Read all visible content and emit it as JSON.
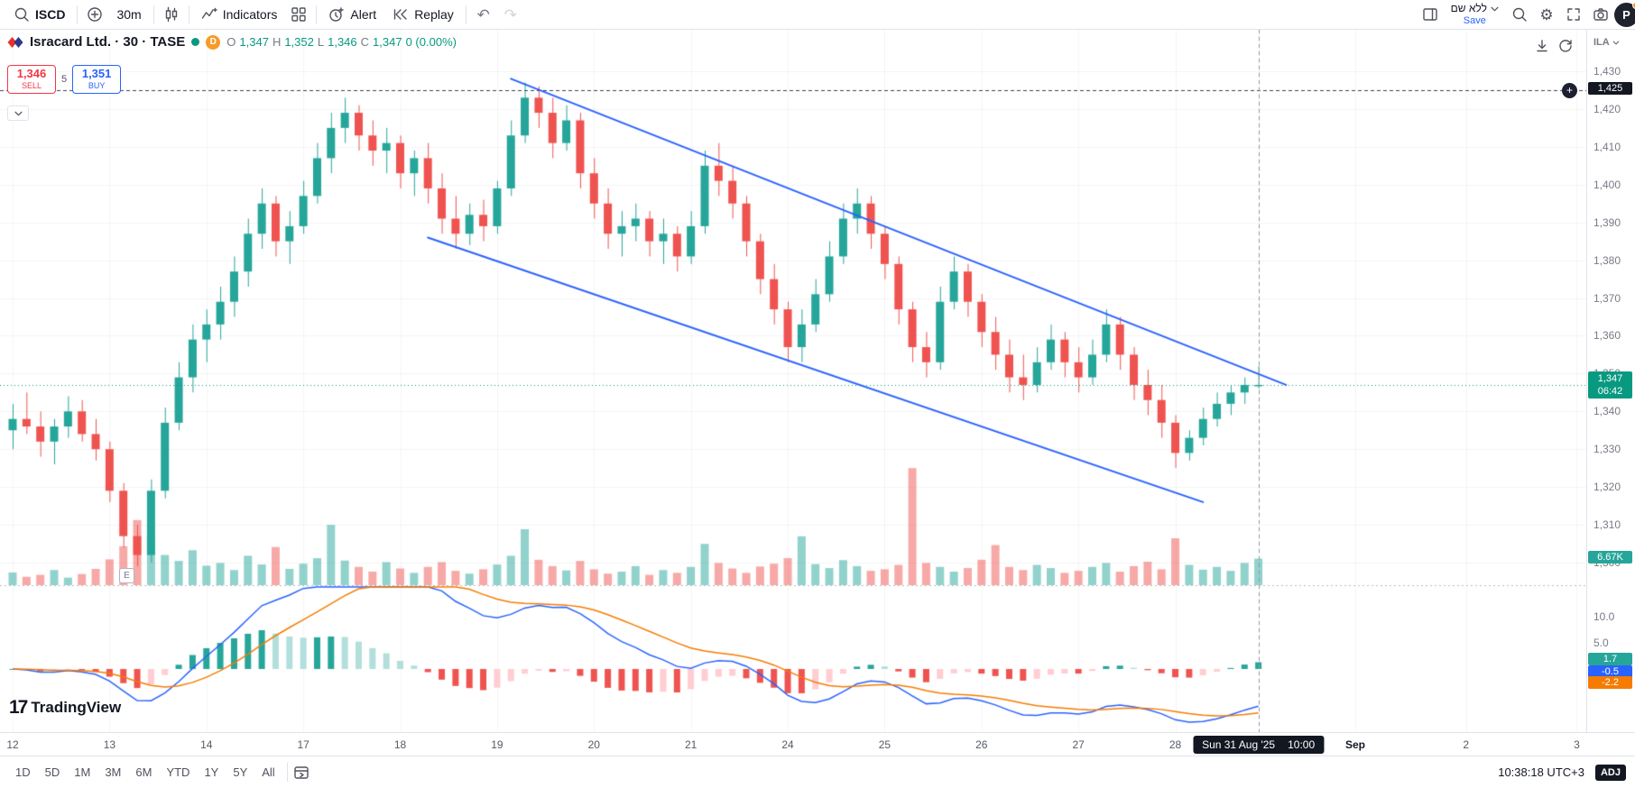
{
  "toolbar": {
    "symbol_search": "ISCD",
    "interval": "30m",
    "indicators_label": "Indicators",
    "alert_label": "Alert",
    "replay_label": "Replay",
    "layout_name": "ללא שם",
    "save_label": "Save",
    "avatar_initial": "P"
  },
  "symbol_bar": {
    "title": "Isracard Ltd. · 30 · TASE",
    "delayed_badge": "D",
    "ohlc": {
      "o_label": "O",
      "o": "1,347",
      "h_label": "H",
      "h": "1,352",
      "l_label": "L",
      "l": "1,346",
      "c_label": "C",
      "c": "1,347",
      "change": "0 (0.00%)"
    }
  },
  "order_panel": {
    "sell_price": "1,346",
    "sell_label": "SELL",
    "spread": "5",
    "buy_price": "1,351",
    "buy_label": "BUY"
  },
  "price_scale": {
    "currency": "ILA",
    "ticks": [
      "1,430",
      "1,420",
      "1,410",
      "1,400",
      "1,390",
      "1,380",
      "1,370",
      "1,360",
      "1,350",
      "1,340",
      "1,330",
      "1,320",
      "1,310",
      "1,300"
    ],
    "alert_price": "1,425",
    "last_price": "1,347",
    "countdown": "06:42",
    "volume_label": "6.67K"
  },
  "macd_scale": {
    "ticks": [
      {
        "label": "10.0",
        "value": 10
      },
      {
        "label": "5.0",
        "value": 5
      }
    ],
    "hist_label": "1.7",
    "macd_label": "-0.5",
    "signal_label": "-2.2"
  },
  "time_scale": {
    "ticks": [
      {
        "label": "12",
        "i": 0
      },
      {
        "label": "13",
        "i": 7
      },
      {
        "label": "14",
        "i": 14
      },
      {
        "label": "17",
        "i": 21
      },
      {
        "label": "18",
        "i": 28
      },
      {
        "label": "19",
        "i": 35
      },
      {
        "label": "20",
        "i": 42
      },
      {
        "label": "21",
        "i": 49
      },
      {
        "label": "24",
        "i": 56
      },
      {
        "label": "25",
        "i": 63
      },
      {
        "label": "26",
        "i": 70
      },
      {
        "label": "27",
        "i": 77
      },
      {
        "label": "28",
        "i": 84
      },
      {
        "label": "Sep",
        "i": 97
      },
      {
        "label": "2",
        "i": 105
      },
      {
        "label": "3",
        "i": 113
      }
    ],
    "crosshair_date": "Sun 31 Aug '25",
    "crosshair_time": "10:00"
  },
  "bottom_toolbar": {
    "ranges": [
      "1D",
      "5D",
      "1M",
      "3M",
      "6M",
      "YTD",
      "1Y",
      "5Y",
      "All"
    ],
    "clock": "10:38:18 UTC+3",
    "adj": "ADJ"
  },
  "watermark": {
    "mark": "17",
    "text": "TradingView"
  },
  "earnings_marker": "E",
  "chart_data": {
    "type": "candlestick",
    "symbol": "ISCD",
    "interval": "30m",
    "price_range": [
      1300,
      1430
    ],
    "candles": [
      [
        1335,
        1342,
        1330,
        1338
      ],
      [
        1338,
        1345,
        1334,
        1336
      ],
      [
        1336,
        1340,
        1328,
        1332
      ],
      [
        1332,
        1338,
        1326,
        1336
      ],
      [
        1336,
        1344,
        1333,
        1340
      ],
      [
        1340,
        1343,
        1332,
        1334
      ],
      [
        1334,
        1338,
        1327,
        1330
      ],
      [
        1330,
        1332,
        1316,
        1319
      ],
      [
        1319,
        1321,
        1304,
        1307
      ],
      [
        1307,
        1310,
        1299,
        1302
      ],
      [
        1302,
        1322,
        1300,
        1319
      ],
      [
        1319,
        1341,
        1317,
        1337
      ],
      [
        1337,
        1353,
        1335,
        1349
      ],
      [
        1349,
        1363,
        1345,
        1359
      ],
      [
        1359,
        1367,
        1353,
        1363
      ],
      [
        1363,
        1373,
        1359,
        1369
      ],
      [
        1369,
        1381,
        1365,
        1377
      ],
      [
        1377,
        1391,
        1373,
        1387
      ],
      [
        1387,
        1399,
        1383,
        1395
      ],
      [
        1395,
        1397,
        1381,
        1385
      ],
      [
        1385,
        1393,
        1379,
        1389
      ],
      [
        1389,
        1401,
        1387,
        1397
      ],
      [
        1397,
        1411,
        1395,
        1407
      ],
      [
        1407,
        1419,
        1403,
        1415
      ],
      [
        1415,
        1423,
        1411,
        1419
      ],
      [
        1419,
        1421,
        1409,
        1413
      ],
      [
        1413,
        1417,
        1405,
        1409
      ],
      [
        1409,
        1415,
        1403,
        1411
      ],
      [
        1411,
        1413,
        1399,
        1403
      ],
      [
        1403,
        1409,
        1397,
        1407
      ],
      [
        1407,
        1411,
        1395,
        1399
      ],
      [
        1399,
        1403,
        1387,
        1391
      ],
      [
        1391,
        1397,
        1383,
        1387
      ],
      [
        1387,
        1395,
        1384,
        1392
      ],
      [
        1392,
        1396,
        1385,
        1389
      ],
      [
        1389,
        1401,
        1387,
        1399
      ],
      [
        1399,
        1417,
        1397,
        1413
      ],
      [
        1413,
        1427,
        1411,
        1423
      ],
      [
        1423,
        1426,
        1415,
        1419
      ],
      [
        1419,
        1423,
        1407,
        1411
      ],
      [
        1411,
        1421,
        1409,
        1417
      ],
      [
        1417,
        1419,
        1399,
        1403
      ],
      [
        1403,
        1407,
        1391,
        1395
      ],
      [
        1395,
        1399,
        1383,
        1387
      ],
      [
        1387,
        1393,
        1381,
        1389
      ],
      [
        1389,
        1395,
        1385,
        1391
      ],
      [
        1391,
        1393,
        1381,
        1385
      ],
      [
        1385,
        1391,
        1379,
        1387
      ],
      [
        1387,
        1389,
        1377,
        1381
      ],
      [
        1381,
        1393,
        1379,
        1389
      ],
      [
        1389,
        1409,
        1387,
        1405
      ],
      [
        1405,
        1411,
        1397,
        1401
      ],
      [
        1401,
        1405,
        1391,
        1395
      ],
      [
        1395,
        1397,
        1381,
        1385
      ],
      [
        1385,
        1387,
        1371,
        1375
      ],
      [
        1375,
        1379,
        1363,
        1367
      ],
      [
        1367,
        1369,
        1353,
        1357
      ],
      [
        1357,
        1367,
        1353,
        1363
      ],
      [
        1363,
        1375,
        1361,
        1371
      ],
      [
        1371,
        1385,
        1369,
        1381
      ],
      [
        1381,
        1395,
        1379,
        1391
      ],
      [
        1391,
        1399,
        1387,
        1395
      ],
      [
        1395,
        1397,
        1383,
        1387
      ],
      [
        1387,
        1389,
        1375,
        1379
      ],
      [
        1379,
        1381,
        1363,
        1367
      ],
      [
        1367,
        1369,
        1353,
        1357
      ],
      [
        1357,
        1361,
        1349,
        1353
      ],
      [
        1353,
        1373,
        1351,
        1369
      ],
      [
        1369,
        1381,
        1367,
        1377
      ],
      [
        1377,
        1379,
        1365,
        1369
      ],
      [
        1369,
        1371,
        1357,
        1361
      ],
      [
        1361,
        1365,
        1351,
        1355
      ],
      [
        1355,
        1359,
        1345,
        1349
      ],
      [
        1349,
        1355,
        1343,
        1347
      ],
      [
        1347,
        1357,
        1345,
        1353
      ],
      [
        1353,
        1363,
        1351,
        1359
      ],
      [
        1359,
        1361,
        1349,
        1353
      ],
      [
        1353,
        1357,
        1345,
        1349
      ],
      [
        1349,
        1359,
        1347,
        1355
      ],
      [
        1355,
        1367,
        1353,
        1363
      ],
      [
        1363,
        1365,
        1351,
        1355
      ],
      [
        1355,
        1357,
        1343,
        1347
      ],
      [
        1347,
        1351,
        1339,
        1343
      ],
      [
        1343,
        1347,
        1333,
        1337
      ],
      [
        1337,
        1339,
        1325,
        1329
      ],
      [
        1329,
        1335,
        1327,
        1333
      ],
      [
        1333,
        1341,
        1331,
        1338
      ],
      [
        1338,
        1345,
        1336,
        1342
      ],
      [
        1342,
        1347,
        1339,
        1345
      ],
      [
        1345,
        1349,
        1342,
        1347
      ],
      [
        1347,
        1352,
        1346,
        1347
      ]
    ],
    "volumes_k": [
      3.2,
      2.1,
      2.6,
      3.8,
      1.9,
      2.8,
      4.1,
      6.5,
      9.8,
      16.4,
      12.2,
      7.6,
      6.1,
      8.8,
      4.9,
      5.6,
      3.8,
      7.4,
      5.2,
      9.6,
      4.1,
      5.4,
      6.8,
      15.2,
      6.2,
      4.6,
      3.4,
      5.8,
      4.2,
      3.1,
      4.6,
      5.8,
      3.6,
      2.9,
      4.0,
      5.2,
      7.4,
      14.1,
      6.4,
      4.8,
      3.7,
      6.1,
      4.0,
      2.9,
      3.4,
      4.8,
      2.6,
      3.8,
      3.1,
      4.6,
      10.4,
      5.6,
      4.2,
      3.1,
      4.7,
      5.4,
      6.8,
      12.3,
      5.3,
      4.3,
      6.3,
      4.8,
      3.6,
      4.0,
      5.1,
      29.5,
      5.6,
      4.6,
      3.4,
      4.3,
      6.4,
      10.1,
      4.6,
      3.8,
      5.1,
      4.3,
      3.1,
      3.6,
      4.6,
      5.6,
      3.4,
      4.8,
      5.9,
      4.0,
      11.8,
      5.1,
      3.9,
      4.6,
      3.6,
      5.6,
      6.67
    ],
    "trendlines": [
      {
        "from": [
          36,
          1428
        ],
        "to": [
          92,
          1347
        ]
      },
      {
        "from": [
          30,
          1386
        ],
        "to": [
          86,
          1316
        ]
      }
    ],
    "alert_line": 1425,
    "last_price": 1347,
    "crosshair_index": 90,
    "macd": {
      "fast": 12,
      "slow": 26,
      "signal": 9
    },
    "colors": {
      "up": "#26a69a",
      "down": "#ef5350",
      "vol_up": "rgba(38,166,154,0.5)",
      "vol_down": "rgba(239,83,80,0.5)",
      "macd_line": "#2962ff",
      "signal_line": "#f57c00",
      "hist_up": "#26a69a",
      "hist_up_weak": "#b2dfdb",
      "hist_down": "#ef5350",
      "hist_down_weak": "#ffcdd2",
      "trendline": "#2962ff",
      "alert_line": "#3c4050",
      "price_line": "#089981",
      "crosshair": "#9598a1"
    }
  }
}
